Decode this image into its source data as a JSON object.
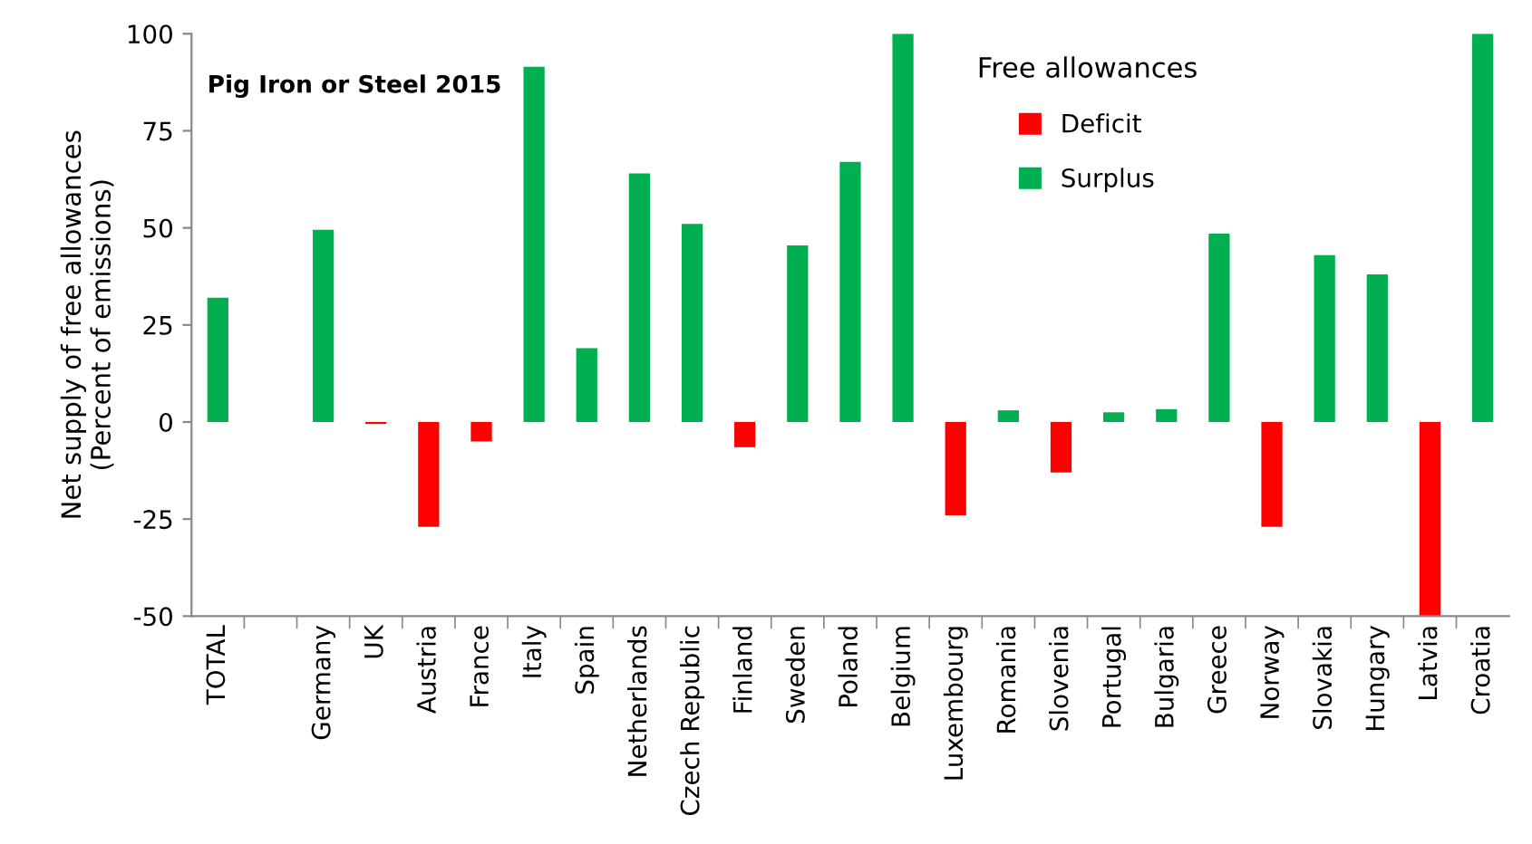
{
  "chart_data": {
    "type": "bar",
    "title": "Pig Iron or Steel 2015",
    "ylabel": "Net supply of free allowances\n(Percent of emissions)",
    "legend_title": "Free allowances",
    "categories": [
      "TOTAL",
      null,
      "Germany",
      "UK",
      "Austria",
      "France",
      "Italy",
      "Spain",
      "Netherlands",
      "Czech Republic",
      "Finland",
      "Sweden",
      "Poland",
      "Belgium",
      "Luxembourg",
      "Romania",
      "Slovenia",
      "Portugal",
      "Bulgaria",
      "Greece",
      "Norway",
      "Slovakia",
      "Hungary",
      "Latvia",
      "Croatia"
    ],
    "series": [
      {
        "name": "Deficit",
        "color": "#ff0000",
        "values": [
          null,
          null,
          null,
          -0.5,
          -27,
          -5,
          null,
          null,
          null,
          null,
          -6.5,
          null,
          null,
          null,
          -24,
          null,
          -13,
          null,
          null,
          null,
          -27,
          null,
          null,
          -50,
          null
        ]
      },
      {
        "name": "Surplus",
        "color": "#00b050",
        "values": [
          32,
          null,
          49.5,
          null,
          null,
          null,
          91.5,
          19,
          64,
          51,
          null,
          45.5,
          67,
          100,
          null,
          3,
          null,
          2.5,
          3.3,
          48.5,
          null,
          43,
          38,
          null,
          100
        ]
      }
    ],
    "ylim": [
      -50,
      100
    ],
    "yticks": [
      -50,
      -25,
      0,
      25,
      50,
      75,
      100
    ],
    "grid": false,
    "legend": "top"
  }
}
